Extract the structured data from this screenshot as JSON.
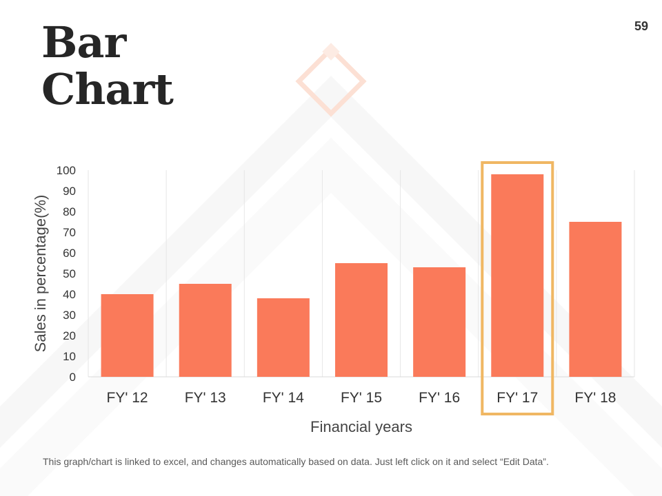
{
  "slide": {
    "title_line1": "Bar",
    "title_line2": "Chart",
    "page_number": "59",
    "footnote": "This graph/chart is linked to excel, and changes automatically based on data. Just left click on it and select “Edit Data”."
  },
  "colors": {
    "bar": "#FA7A5A",
    "highlight_box": "#F0B763",
    "decor": "#FCE0D4"
  },
  "chart_data": {
    "type": "bar",
    "categories": [
      "FY' 12",
      "FY' 13",
      "FY' 14",
      "FY' 15",
      "FY' 16",
      "FY' 17",
      "FY' 18"
    ],
    "values": [
      40,
      45,
      38,
      55,
      53,
      98,
      75
    ],
    "xlabel": "Financial years",
    "ylabel": "Sales in percentage(%)",
    "ylim": [
      0,
      100
    ],
    "yticks": [
      0,
      10,
      20,
      30,
      40,
      50,
      60,
      70,
      80,
      90,
      100
    ],
    "highlighted_category": "FY' 17",
    "grid": "vertical"
  }
}
